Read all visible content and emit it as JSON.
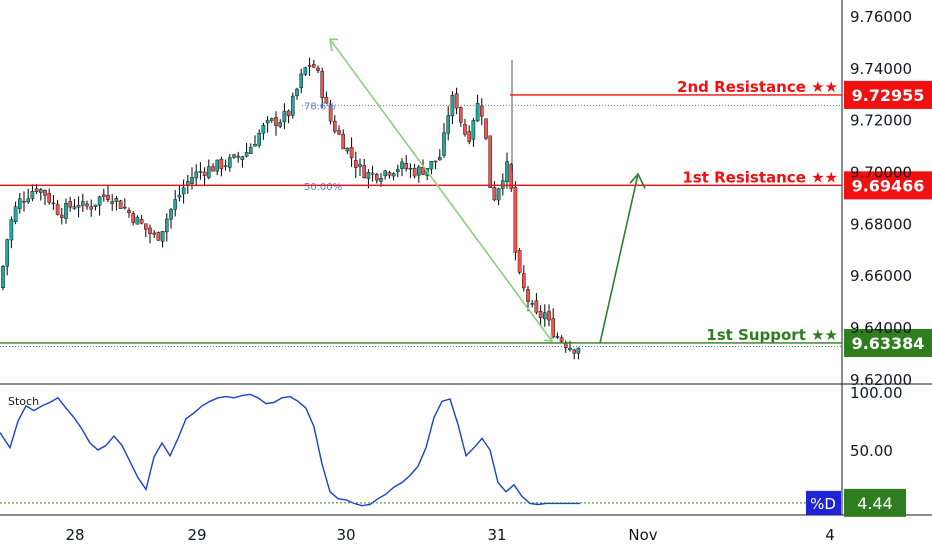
{
  "colors": {
    "up": "#26a69a",
    "down": "#ef5350",
    "resistance": "#f20f0f",
    "support": "#2e7d1f",
    "stoch_line": "#1a3fd6",
    "arrow_green_light": "#8bcf7a",
    "arrow_green_dark": "#2e7d32",
    "fib": "#5d7fc4",
    "d_badge": "#1f25d6"
  },
  "chart_data": [
    {
      "type": "candlestick",
      "ylim": [
        9.615,
        9.765
      ],
      "y_ticks": [
        "9.76000",
        "9.74000",
        "9.72000",
        "9.70000",
        "9.68000",
        "9.66000",
        "9.64000",
        "9.62000"
      ],
      "x_ticks": [
        "28",
        "29",
        "30",
        "31",
        "Nov",
        "4"
      ],
      "levels": [
        {
          "label": "2nd Resistance ★★",
          "value": "9.72955",
          "kind": "resistance"
        },
        {
          "label": "1st Resistance ★★",
          "value": "9.69466",
          "kind": "resistance"
        },
        {
          "label": "1st Support ★★",
          "value": "9.63384",
          "kind": "support"
        }
      ],
      "fib_labels": [
        "78.6%",
        "50.00%"
      ],
      "close_path": [
        [
          0,
          9.655
        ],
        [
          6,
          9.672
        ],
        [
          12,
          9.682
        ],
        [
          18,
          9.688
        ],
        [
          24,
          9.69
        ],
        [
          30,
          9.692
        ],
        [
          36,
          9.694
        ],
        [
          44,
          9.692
        ],
        [
          52,
          9.688
        ],
        [
          60,
          9.684
        ],
        [
          68,
          9.686
        ],
        [
          76,
          9.688
        ],
        [
          84,
          9.686
        ],
        [
          92,
          9.687
        ],
        [
          100,
          9.69
        ],
        [
          108,
          9.691
        ],
        [
          116,
          9.689
        ],
        [
          124,
          9.686
        ],
        [
          132,
          9.683
        ],
        [
          140,
          9.68
        ],
        [
          148,
          9.677
        ],
        [
          156,
          9.674
        ],
        [
          162,
          9.678
        ],
        [
          168,
          9.683
        ],
        [
          176,
          9.689
        ],
        [
          184,
          9.694
        ],
        [
          192,
          9.698
        ],
        [
          200,
          9.7
        ],
        [
          208,
          9.701
        ],
        [
          216,
          9.702
        ],
        [
          224,
          9.703
        ],
        [
          232,
          9.704
        ],
        [
          240,
          9.706
        ],
        [
          248,
          9.708
        ],
        [
          256,
          9.713
        ],
        [
          264,
          9.717
        ],
        [
          272,
          9.719
        ],
        [
          280,
          9.72
        ],
        [
          288,
          9.722
        ],
        [
          294,
          9.728
        ],
        [
          300,
          9.735
        ],
        [
          306,
          9.74
        ],
        [
          312,
          9.742
        ],
        [
          318,
          9.737
        ],
        [
          324,
          9.728
        ],
        [
          330,
          9.72
        ],
        [
          336,
          9.716
        ],
        [
          342,
          9.712
        ],
        [
          348,
          9.708
        ],
        [
          354,
          9.704
        ],
        [
          360,
          9.701
        ],
        [
          368,
          9.699
        ],
        [
          376,
          9.699
        ],
        [
          384,
          9.7
        ],
        [
          392,
          9.701
        ],
        [
          400,
          9.702
        ],
        [
          408,
          9.701
        ],
        [
          416,
          9.7
        ],
        [
          424,
          9.701
        ],
        [
          432,
          9.703
        ],
        [
          440,
          9.706
        ],
        [
          446,
          9.716
        ],
        [
          450,
          9.728
        ],
        [
          456,
          9.727
        ],
        [
          462,
          9.718
        ],
        [
          468,
          9.712
        ],
        [
          474,
          9.722
        ],
        [
          480,
          9.728
        ],
        [
          486,
          9.712
        ],
        [
          490,
          9.695
        ],
        [
          494,
          9.69
        ],
        [
          498,
          9.694
        ],
        [
          504,
          9.7
        ],
        [
          508,
          9.702
        ],
        [
          512,
          9.69
        ],
        [
          516,
          9.665
        ],
        [
          520,
          9.658
        ],
        [
          526,
          9.652
        ],
        [
          532,
          9.647
        ],
        [
          538,
          9.643
        ],
        [
          544,
          9.646
        ],
        [
          550,
          9.64
        ],
        [
          556,
          9.637
        ],
        [
          562,
          9.635
        ],
        [
          568,
          9.633
        ],
        [
          574,
          9.632
        ],
        [
          580,
          9.633
        ]
      ]
    },
    {
      "type": "line",
      "title": "Stoch",
      "series": [
        {
          "name": "%D",
          "value": "4.44"
        }
      ],
      "y_ticks": [
        "100.00",
        "50.00"
      ],
      "ylim": [
        0,
        100
      ],
      "x": [
        0,
        10,
        18,
        26,
        34,
        42,
        50,
        58,
        66,
        74,
        82,
        90,
        98,
        106,
        114,
        122,
        130,
        138,
        146,
        154,
        162,
        170,
        178,
        186,
        194,
        202,
        210,
        218,
        226,
        234,
        242,
        250,
        258,
        266,
        274,
        282,
        290,
        298,
        306,
        314,
        322,
        330,
        338,
        346,
        354,
        362,
        370,
        378,
        386,
        394,
        402,
        410,
        418,
        426,
        434,
        442,
        450,
        458,
        466,
        474,
        482,
        490,
        498,
        506,
        514,
        522,
        530,
        538,
        546,
        554,
        562,
        570,
        580
      ],
      "values": [
        65,
        52,
        75,
        88,
        84,
        88,
        91,
        95,
        86,
        78,
        68,
        56,
        50,
        54,
        62,
        54,
        40,
        26,
        16,
        44,
        56,
        45,
        60,
        77,
        82,
        88,
        92,
        95,
        96,
        95,
        97,
        98,
        95,
        90,
        91,
        95,
        96,
        92,
        86,
        70,
        38,
        14,
        8,
        7,
        4,
        2,
        3,
        8,
        12,
        18,
        22,
        28,
        36,
        52,
        78,
        92,
        94,
        72,
        45,
        52,
        60,
        50,
        22,
        14,
        20,
        10,
        4,
        3,
        4,
        4,
        4,
        4,
        4
      ]
    }
  ]
}
